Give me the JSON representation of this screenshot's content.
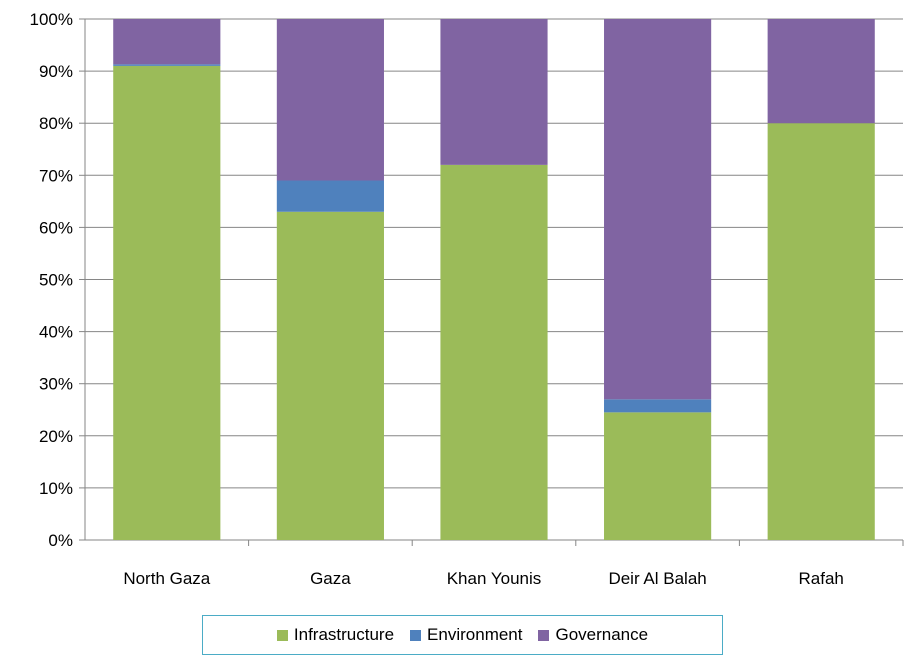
{
  "chart_data": {
    "type": "bar",
    "stacked": true,
    "categories": [
      "North Gaza",
      "Gaza",
      "Khan Younis",
      "Deir Al Balah",
      "Rafah"
    ],
    "series": [
      {
        "name": "Infrastructure",
        "color": "#9bbb59",
        "values": [
          91,
          63,
          72,
          24.5,
          80
        ]
      },
      {
        "name": "Environment",
        "color": "#4f81bd",
        "values": [
          0.3,
          6,
          0,
          2.5,
          0
        ]
      },
      {
        "name": "Governance",
        "color": "#8064a2",
        "values": [
          8.7,
          31,
          28,
          73,
          20
        ]
      }
    ],
    "ylim": [
      0,
      100
    ],
    "yticks": [
      "0%",
      "10%",
      "20%",
      "30%",
      "40%",
      "50%",
      "60%",
      "70%",
      "80%",
      "90%",
      "100%"
    ],
    "title": "",
    "xlabel": "",
    "ylabel": "",
    "grid": true,
    "legend_position": "bottom"
  }
}
